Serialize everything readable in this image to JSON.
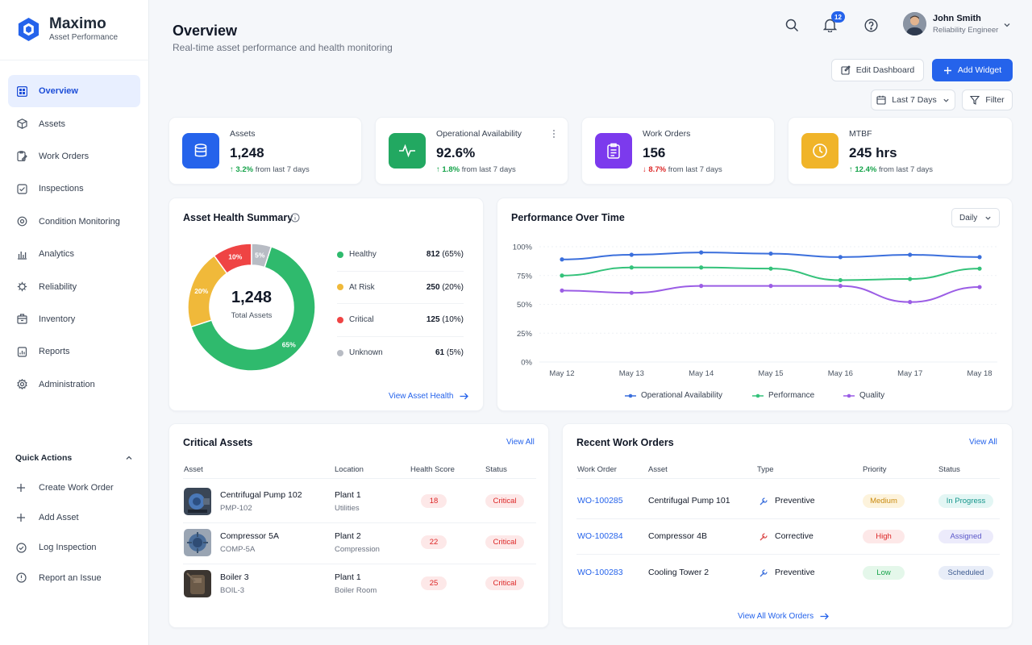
{
  "app": {
    "title": "Maximo",
    "subtitle": "Asset Performance"
  },
  "nav": [
    {
      "label": "Overview",
      "icon": "grid-icon",
      "active": true
    },
    {
      "label": "Assets",
      "icon": "cube-icon"
    },
    {
      "label": "Work Orders",
      "icon": "wrench-clipboard-icon"
    },
    {
      "label": "Inspections",
      "icon": "edit-check-icon"
    },
    {
      "label": "Condition Monitoring",
      "icon": "pulse-gear-icon"
    },
    {
      "label": "Analytics",
      "icon": "bar-chart-icon"
    },
    {
      "label": "Reliability",
      "icon": "shield-gear-icon"
    },
    {
      "label": "Inventory",
      "icon": "box-icon"
    },
    {
      "label": "Reports",
      "icon": "report-icon"
    },
    {
      "label": "Administration",
      "icon": "settings-icon"
    }
  ],
  "quick_actions": {
    "title": "Quick Actions",
    "items": [
      {
        "label": "Create Work Order",
        "icon": "plus-icon"
      },
      {
        "label": "Add Asset",
        "icon": "plus-icon"
      },
      {
        "label": "Log Inspection",
        "icon": "check-circle-icon"
      },
      {
        "label": "Report an Issue",
        "icon": "alert-circle-icon"
      }
    ]
  },
  "header": {
    "title": "Overview",
    "subtitle": "Real-time asset performance and health monitoring",
    "notifications": "12",
    "user_name": "John Smith",
    "user_role": "Reliability Engineer"
  },
  "toolbar": {
    "edit_label": "Edit Dashboard",
    "add_label": "Add Widget",
    "range_label": "Last 7 Days",
    "filter_label": "Filter"
  },
  "kpis": [
    {
      "label": "Assets",
      "value": "1,248",
      "delta": "3.2%",
      "direction": "up",
      "suffix": "from last 7 days",
      "color": "#2563eb",
      "icon": "database-icon"
    },
    {
      "label": "Operational Availability",
      "value": "92.6%",
      "delta": "1.8%",
      "direction": "up",
      "suffix": "from last 7 days",
      "color": "#22a861",
      "icon": "pulse-icon"
    },
    {
      "label": "Work Orders",
      "value": "156",
      "delta": "8.7%",
      "direction": "down",
      "suffix": "from last 7 days",
      "color": "#7c3aed",
      "icon": "clipboard-icon"
    },
    {
      "label": "MTBF",
      "value": "245 hrs",
      "delta": "12.4%",
      "direction": "up",
      "suffix": "from last 7 days",
      "color": "#f0b429",
      "icon": "clock-icon"
    }
  ],
  "health": {
    "title": "Asset Health Summary",
    "center_value": "1,248",
    "center_label": "Total Assets",
    "segments": [
      {
        "label": "Healthy",
        "count": "812",
        "pct": "(65%)",
        "value": 65,
        "color": "#2fba6d",
        "slice_label": "65%"
      },
      {
        "label": "At Risk",
        "count": "250",
        "pct": "(20%)",
        "value": 20,
        "color": "#f0b93a",
        "slice_label": "20%"
      },
      {
        "label": "Critical",
        "count": "125",
        "pct": "(10%)",
        "value": 10,
        "color": "#ef4444",
        "slice_label": "10%"
      },
      {
        "label": "Unknown",
        "count": "61",
        "pct": "(5%)",
        "value": 5,
        "color": "#b8bcc4",
        "slice_label": "5%"
      }
    ],
    "view_link": "View Asset Health"
  },
  "performance": {
    "title": "Performance Over Time",
    "period": "Daily"
  },
  "chart_data": {
    "type": "line",
    "x": [
      "May 12",
      "May 13",
      "May 14",
      "May 15",
      "May 16",
      "May 17",
      "May 18"
    ],
    "y_ticks": [
      "100%",
      "75%",
      "50%",
      "25%",
      "0%"
    ],
    "ylim": [
      0,
      100
    ],
    "series": [
      {
        "name": "Operational Availability",
        "values": [
          89,
          93,
          95,
          94,
          91,
          93,
          91
        ],
        "color": "#3b6fdc"
      },
      {
        "name": "Performance",
        "values": [
          75,
          82,
          82,
          81,
          71,
          72,
          81
        ],
        "color": "#34c27a"
      },
      {
        "name": "Quality",
        "values": [
          62,
          60,
          66,
          66,
          66,
          52,
          65
        ],
        "color": "#9b5de5"
      }
    ]
  },
  "critical_assets": {
    "title": "Critical Assets",
    "view_all": "View All",
    "columns": [
      "Asset",
      "Location",
      "Health Score",
      "Status"
    ],
    "rows": [
      {
        "name": "Centrifugal Pump 102",
        "id": "PMP-102",
        "location": "Plant 1",
        "area": "Utilities",
        "score": "18",
        "status": "Critical"
      },
      {
        "name": "Compressor 5A",
        "id": "COMP-5A",
        "location": "Plant 2",
        "area": "Compression",
        "score": "22",
        "status": "Critical"
      },
      {
        "name": "Boiler 3",
        "id": "BOIL-3",
        "location": "Plant 1",
        "area": "Boiler Room",
        "score": "25",
        "status": "Critical"
      }
    ]
  },
  "work_orders": {
    "title": "Recent Work Orders",
    "view_all": "View All",
    "view_all_bottom": "View All Work Orders",
    "columns": [
      "Work Order",
      "Asset",
      "Type",
      "Priority",
      "Status"
    ],
    "rows": [
      {
        "id": "WO-100285",
        "asset": "Centrifugal Pump 101",
        "type": "Preventive",
        "priority": "Medium",
        "status": "In Progress"
      },
      {
        "id": "WO-100284",
        "asset": "Compressor 4B",
        "type": "Corrective",
        "priority": "High",
        "status": "Assigned"
      },
      {
        "id": "WO-100283",
        "asset": "Cooling Tower 2",
        "type": "Preventive",
        "priority": "Low",
        "status": "Scheduled"
      }
    ]
  }
}
